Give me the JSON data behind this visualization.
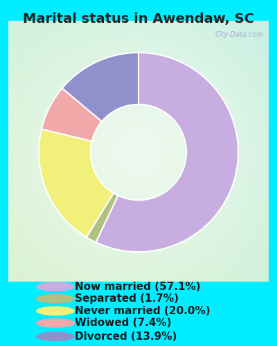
{
  "title": "Marital status in Awendaw, SC",
  "slices": [
    {
      "label": "Now married (57.1%)",
      "value": 57.1,
      "color": "#c8aee0"
    },
    {
      "label": "Separated (1.7%)",
      "value": 1.7,
      "color": "#b0c080"
    },
    {
      "label": "Never married (20.0%)",
      "value": 20.0,
      "color": "#f0f07a"
    },
    {
      "label": "Widowed (7.4%)",
      "value": 7.4,
      "color": "#f0a8a8"
    },
    {
      "label": "Divorced (13.9%)",
      "value": 13.9,
      "color": "#9090cc"
    }
  ],
  "start_angle": 90,
  "outer_bg": "#00eeff",
  "title_fontsize": 14,
  "legend_fontsize": 11,
  "watermark": "City-Data.com"
}
